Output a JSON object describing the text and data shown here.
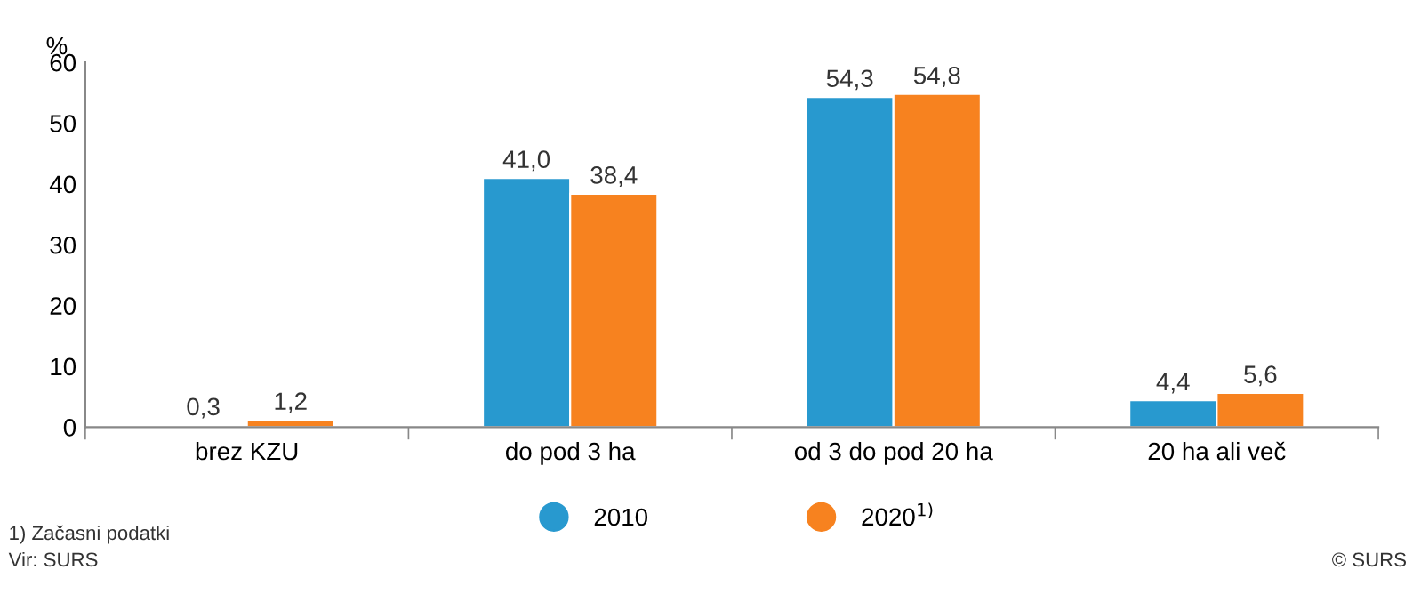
{
  "chart_data": {
    "type": "bar",
    "ylabel": "%",
    "categories": [
      "brez KZU",
      "do pod 3 ha",
      "od 3 do pod 20 ha",
      "20 ha ali več"
    ],
    "series": [
      {
        "name": "2010",
        "color": "#2899cf",
        "values": [
          0.3,
          41.0,
          54.3,
          4.4
        ],
        "value_labels": [
          "0,3",
          "41,0",
          "54,3",
          "4,4"
        ]
      },
      {
        "name": "2020$^{1)}$",
        "color": "#f7821f",
        "values": [
          1.2,
          38.4,
          54.8,
          5.6
        ],
        "value_labels": [
          "1,2",
          "38,4",
          "54,8",
          "5,6"
        ]
      }
    ],
    "ylim": [
      0,
      60
    ],
    "yticks": [
      0,
      10,
      20,
      30,
      40,
      50,
      60
    ],
    "grid": false,
    "legend": "bottom",
    "annotations": [
      "1) Začasni podatki",
      "Vir: SURS",
      "© SURS"
    ]
  }
}
